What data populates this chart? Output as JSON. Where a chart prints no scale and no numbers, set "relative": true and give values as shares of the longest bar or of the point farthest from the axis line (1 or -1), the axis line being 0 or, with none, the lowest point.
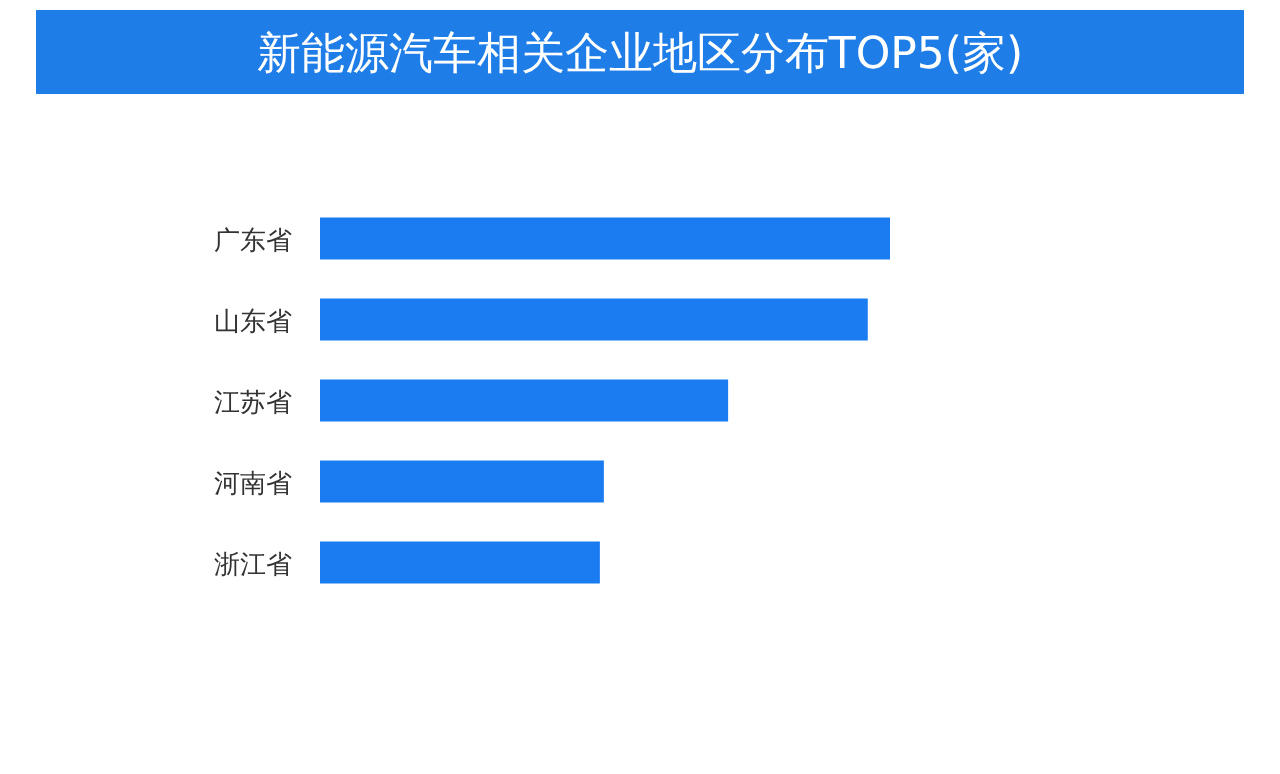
{
  "chart_data": {
    "type": "bar",
    "orientation": "horizontal",
    "relative": true,
    "title": "新能源汽车相关企业地区分布TOP5(家)",
    "categories": [
      "广东省",
      "山东省",
      "江苏省",
      "河南省",
      "浙江省"
    ],
    "values": [
      1,
      0.961,
      0.716,
      0.498,
      0.491
    ],
    "color": "#1a7cf0"
  }
}
